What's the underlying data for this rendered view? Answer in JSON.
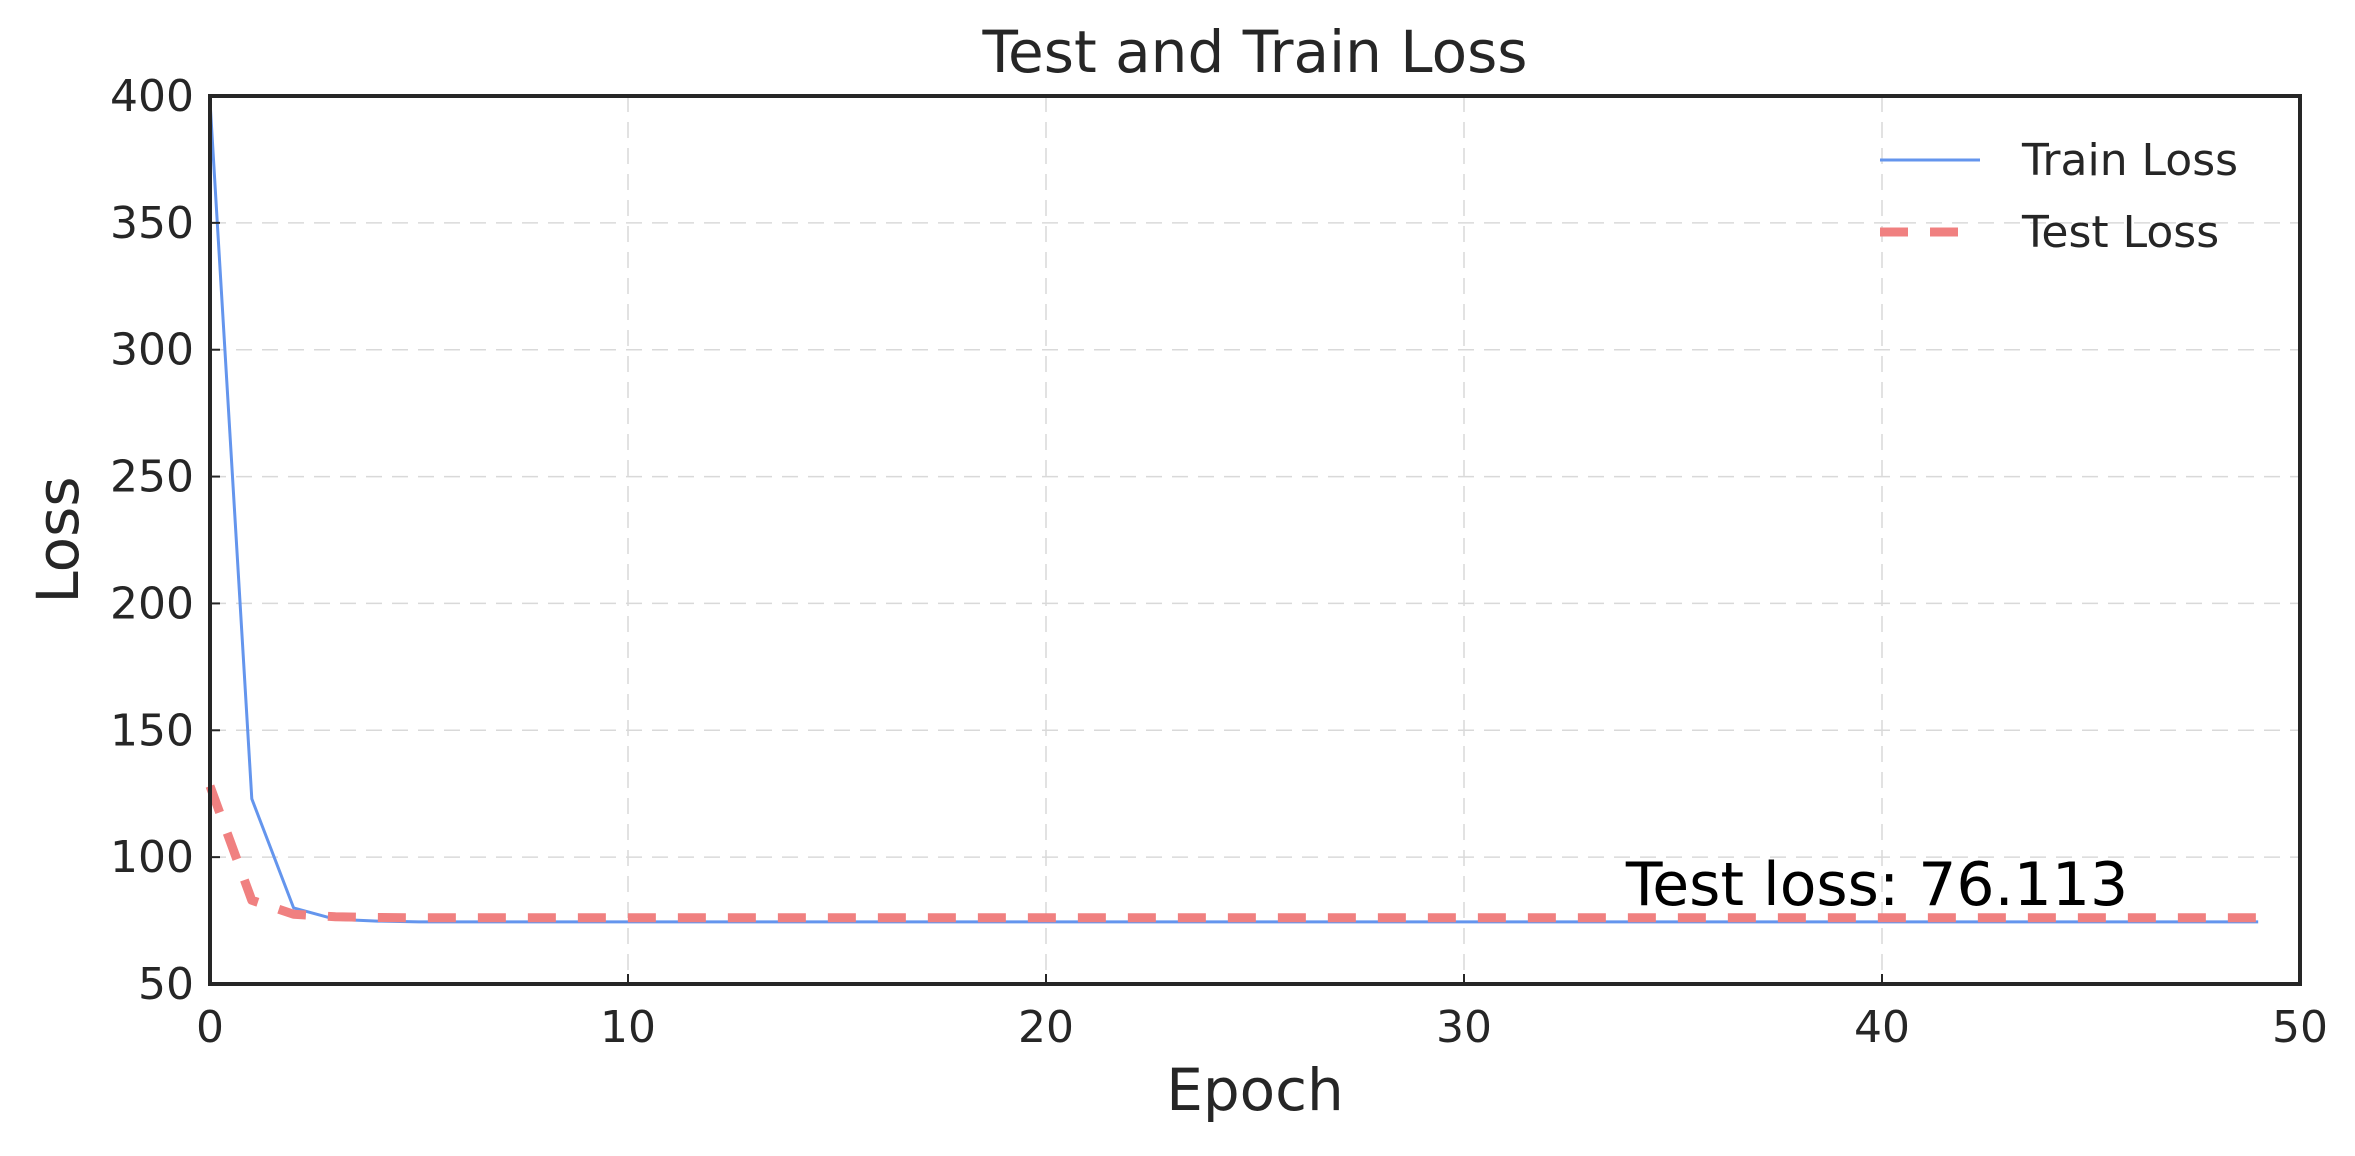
{
  "chart_data": {
    "type": "line",
    "title": "Test and Train Loss",
    "xlabel": "Epoch",
    "ylabel": "Loss",
    "xlim": [
      0,
      50
    ],
    "ylim": [
      50,
      400
    ],
    "xticks": [
      0,
      10,
      20,
      30,
      40,
      50
    ],
    "yticks": [
      50,
      100,
      150,
      200,
      250,
      300,
      350,
      400
    ],
    "grid": true,
    "legend_position": "top-right",
    "annotation": "Test loss: 76.113",
    "x": [
      0,
      1,
      2,
      3,
      4,
      5,
      6,
      7,
      8,
      9,
      10,
      11,
      12,
      13,
      14,
      15,
      16,
      17,
      18,
      19,
      20,
      21,
      22,
      23,
      24,
      25,
      26,
      27,
      28,
      29,
      30,
      31,
      32,
      33,
      34,
      35,
      36,
      37,
      38,
      39,
      40,
      41,
      42,
      43,
      44,
      45,
      46,
      47,
      48,
      49
    ],
    "series": [
      {
        "name": "Train Loss",
        "color": "#6495ED",
        "style": "solid",
        "values": [
          398,
          123,
          80,
          75.5,
          74.8,
          74.5,
          74.5,
          74.5,
          74.5,
          74.5,
          74.5,
          74.5,
          74.5,
          74.5,
          74.5,
          74.5,
          74.5,
          74.5,
          74.5,
          74.5,
          74.5,
          74.5,
          74.5,
          74.5,
          74.5,
          74.5,
          74.5,
          74.5,
          74.5,
          74.5,
          74.5,
          74.5,
          74.5,
          74.5,
          74.5,
          74.5,
          74.5,
          74.5,
          74.5,
          74.5,
          74.5,
          74.5,
          74.5,
          74.5,
          74.5,
          74.5,
          74.5,
          74.5,
          74.5,
          74.5
        ]
      },
      {
        "name": "Test Loss",
        "color": "#F08080",
        "style": "dashed",
        "values": [
          128,
          83,
          77.5,
          76.5,
          76.2,
          76.1,
          76.1,
          76.1,
          76.1,
          76.1,
          76.1,
          76.1,
          76.1,
          76.1,
          76.1,
          76.1,
          76.1,
          76.1,
          76.1,
          76.1,
          76.1,
          76.1,
          76.1,
          76.1,
          76.1,
          76.1,
          76.1,
          76.1,
          76.1,
          76.1,
          76.1,
          76.1,
          76.1,
          76.1,
          76.1,
          76.1,
          76.1,
          76.1,
          76.1,
          76.1,
          76.1,
          76.1,
          76.1,
          76.1,
          76.1,
          76.1,
          76.1,
          76.1,
          76.1,
          76.113
        ]
      }
    ]
  }
}
